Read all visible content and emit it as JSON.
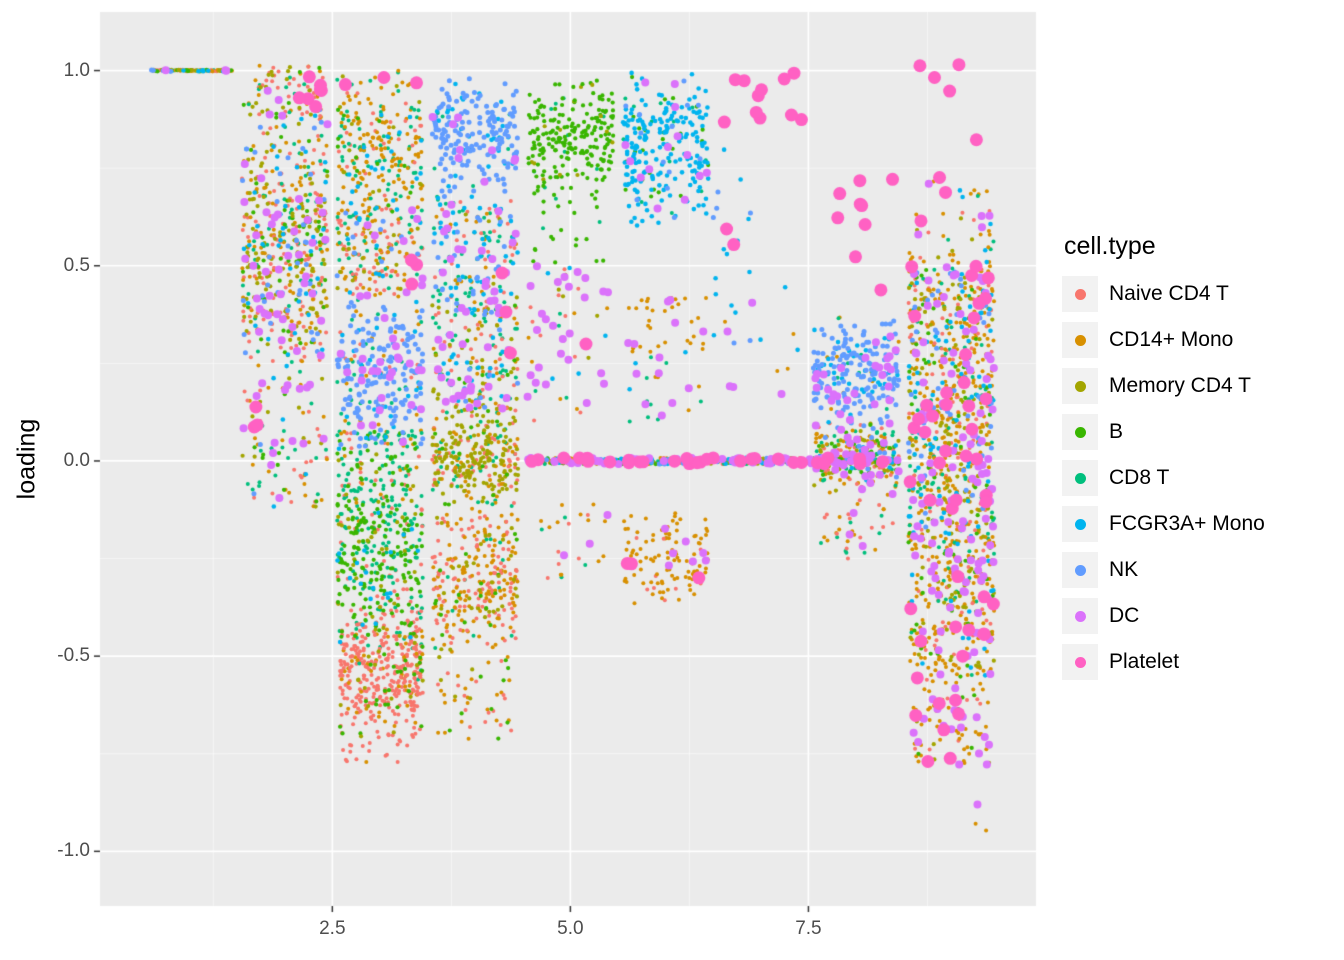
{
  "style": {
    "panel_background": "#EBEBEB",
    "grid_major_color": "#FFFFFF",
    "grid_minor_color": "rgba(255,255,255,0.55)",
    "tick_mark_color": "#333333",
    "tick_label_color": "#4D4D4D"
  },
  "chart_data": {
    "type": "scatter",
    "title": "",
    "xlabel": "",
    "ylabel": "loading",
    "legend_title": "cell.type",
    "legend_position": "right",
    "grid": true,
    "xlim": [
      0.06,
      9.89
    ],
    "ylim": [
      -1.14,
      1.15
    ],
    "x_ticks": [
      2.5,
      5.0,
      7.5
    ],
    "x_tick_labels": [
      "2.5",
      "5.0",
      "7.5"
    ],
    "x_minor": [
      1.25,
      3.75,
      6.25,
      8.75
    ],
    "y_ticks": [
      -1.0,
      -0.5,
      0.0,
      0.5,
      1.0
    ],
    "y_tick_labels": [
      "-1.0",
      "-0.5",
      "0.0",
      "0.5",
      "1.0"
    ],
    "y_minor": [
      -0.75,
      -0.25,
      0.25,
      0.75
    ],
    "cell_types": [
      {
        "id": "N",
        "name": "Naive CD4 T",
        "color": "#F8766D",
        "r": 2.0
      },
      {
        "id": "C14",
        "name": "CD14+ Mono",
        "color": "#D89000",
        "r": 2.0
      },
      {
        "id": "M",
        "name": "Memory CD4 T",
        "color": "#A3A500",
        "r": 2.1
      },
      {
        "id": "B",
        "name": "B",
        "color": "#39B600",
        "r": 2.1
      },
      {
        "id": "C8",
        "name": "CD8 T",
        "color": "#00BF7D",
        "r": 2.0
      },
      {
        "id": "F",
        "name": "FCGR3A+ Mono",
        "color": "#00B4EF",
        "r": 2.3
      },
      {
        "id": "NK",
        "name": "NK",
        "color": "#619CFF",
        "r": 2.5
      },
      {
        "id": "DC",
        "name": "DC",
        "color": "#DB72FB",
        "r": 4.0
      },
      {
        "id": "P",
        "name": "Platelet",
        "color": "#FF61C3",
        "r": 6.5
      }
    ],
    "clusters": [
      {
        "n": 110,
        "x": [
          0.6,
          1.45
        ],
        "y": [
          0.998,
          1.002
        ],
        "dist": "u",
        "mix": {
          "N": 20,
          "C14": 20,
          "M": 15,
          "B": 10,
          "C8": 15,
          "F": 10,
          "NK": 5,
          "DC": 5
        }
      },
      {
        "n": 550,
        "x": [
          1.55,
          2.45
        ],
        "y": [
          0.18,
          0.92
        ],
        "dist": "g",
        "mix": {
          "N": 22,
          "C14": 20,
          "M": 18,
          "B": 8,
          "C8": 12,
          "F": 8,
          "NK": 7,
          "DC": 5
        }
      },
      {
        "n": 70,
        "x": [
          1.6,
          2.45
        ],
        "y": [
          0.88,
          1.02
        ],
        "dist": "u",
        "mix": {
          "N": 30,
          "C14": 25,
          "M": 20,
          "C8": 10,
          "F": 5,
          "B": 5,
          "DC": 5
        }
      },
      {
        "n": 7,
        "x": [
          2.05,
          2.4
        ],
        "y": [
          0.9,
          1.0
        ],
        "dist": "u",
        "mix": {
          "P": 1
        }
      },
      {
        "n": 90,
        "x": [
          1.55,
          2.45
        ],
        "y": [
          -0.12,
          0.2
        ],
        "dist": "u",
        "mix": {
          "N": 20,
          "C14": 20,
          "M": 10,
          "C8": 15,
          "B": 10,
          "F": 5,
          "NK": 5,
          "DC": 15
        }
      },
      {
        "n": 3,
        "x": [
          1.58,
          1.78
        ],
        "y": [
          0.08,
          0.16
        ],
        "dist": "u",
        "mix": {
          "P": 1
        }
      },
      {
        "n": 20,
        "x": [
          1.6,
          2.4
        ],
        "y": [
          0.15,
          0.7
        ],
        "dist": "u",
        "mix": {
          "DC": 1
        }
      },
      {
        "n": 260,
        "x": [
          2.55,
          3.45
        ],
        "y": [
          0.6,
          1.0
        ],
        "dist": "g",
        "mix": {
          "C14": 55,
          "C8": 20,
          "N": 10,
          "F": 5,
          "M": 5,
          "B": 5
        }
      },
      {
        "n": 3,
        "x": [
          2.58,
          3.4
        ],
        "y": [
          0.93,
          1.01
        ],
        "dist": "u",
        "mix": {
          "P": 1
        }
      },
      {
        "n": 3,
        "x": [
          3.2,
          3.4
        ],
        "y": [
          0.42,
          0.52
        ],
        "dist": "u",
        "mix": {
          "P": 1
        }
      },
      {
        "n": 200,
        "x": [
          2.55,
          3.45
        ],
        "y": [
          0.42,
          0.65
        ],
        "dist": "u",
        "mix": {
          "N": 30,
          "C14": 30,
          "C8": 15,
          "M": 10,
          "F": 5,
          "NK": 5,
          "DC": 5
        }
      },
      {
        "n": 260,
        "x": [
          2.55,
          3.45
        ],
        "y": [
          0.02,
          0.42
        ],
        "dist": "g",
        "mix": {
          "NK": 60,
          "F": 10,
          "DC": 8,
          "C8": 10,
          "N": 6,
          "C14": 6
        }
      },
      {
        "n": 200,
        "x": [
          2.55,
          3.45
        ],
        "y": [
          -0.18,
          0.08
        ],
        "dist": "u",
        "mix": {
          "C8": 50,
          "B": 20,
          "M": 10,
          "N": 10,
          "C14": 10
        }
      },
      {
        "n": 280,
        "x": [
          2.55,
          3.45
        ],
        "y": [
          -0.48,
          -0.1
        ],
        "dist": "g",
        "mix": {
          "B": 45,
          "C8": 30,
          "M": 10,
          "N": 10,
          "F": 5
        }
      },
      {
        "n": 420,
        "x": [
          2.58,
          3.45
        ],
        "y": [
          -0.72,
          -0.35
        ],
        "dist": "g",
        "mix": {
          "N": 75,
          "C14": 10,
          "B": 8,
          "M": 5,
          "C8": 2
        }
      },
      {
        "n": 20,
        "x": [
          2.6,
          3.3
        ],
        "y": [
          -0.78,
          -0.7
        ],
        "dist": "u",
        "mix": {
          "N": 80,
          "C14": 20
        }
      },
      {
        "n": 200,
        "x": [
          3.55,
          4.45
        ],
        "y": [
          0.68,
          0.98
        ],
        "dist": "g",
        "mix": {
          "NK": 75,
          "F": 15,
          "C8": 5,
          "DC": 5
        }
      },
      {
        "n": 170,
        "x": [
          3.55,
          4.45
        ],
        "y": [
          0.42,
          0.68
        ],
        "dist": "u",
        "mix": {
          "C8": 30,
          "F": 20,
          "NK": 15,
          "N": 10,
          "C14": 10,
          "DC": 10,
          "M": 5
        }
      },
      {
        "n": 3,
        "x": [
          4.25,
          4.42
        ],
        "y": [
          0.26,
          0.56
        ],
        "dist": "u",
        "mix": {
          "P": 1
        }
      },
      {
        "n": 220,
        "x": [
          3.55,
          4.45
        ],
        "y": [
          0.12,
          0.42
        ],
        "dist": "u",
        "mix": {
          "C8": 20,
          "N": 15,
          "C14": 15,
          "M": 15,
          "F": 10,
          "DC": 15,
          "B": 5,
          "NK": 5
        }
      },
      {
        "n": 300,
        "x": [
          3.55,
          4.45
        ],
        "y": [
          -0.12,
          0.15
        ],
        "dist": "g",
        "mix": {
          "M": 50,
          "C14": 20,
          "N": 15,
          "C8": 10,
          "B": 5
        }
      },
      {
        "n": 300,
        "x": [
          3.55,
          4.45
        ],
        "y": [
          -0.5,
          -0.12
        ],
        "dist": "g",
        "mix": {
          "C14": 50,
          "N": 30,
          "M": 10,
          "B": 5,
          "C8": 5
        }
      },
      {
        "n": 50,
        "x": [
          3.6,
          4.4
        ],
        "y": [
          -0.72,
          -0.5
        ],
        "dist": "u",
        "mix": {
          "C14": 50,
          "N": 30,
          "B": 10,
          "M": 10
        }
      },
      {
        "n": 230,
        "x": [
          4.55,
          5.45
        ],
        "y": [
          0.68,
          0.98
        ],
        "dist": "g",
        "mix": {
          "B": 90,
          "M": 5,
          "C8": 5
        }
      },
      {
        "n": 25,
        "x": [
          4.6,
          5.4
        ],
        "y": [
          0.5,
          0.7
        ],
        "dist": "u",
        "mix": {
          "B": 80,
          "C8": 20
        }
      },
      {
        "n": 60,
        "x": [
          4.55,
          5.45
        ],
        "y": [
          0.1,
          0.5
        ],
        "dist": "u",
        "mix": {
          "DC": 35,
          "N": 15,
          "C8": 15,
          "F": 10,
          "M": 10,
          "C14": 10,
          "P": 5
        }
      },
      {
        "n": 25,
        "x": [
          4.6,
          5.4
        ],
        "y": [
          -0.3,
          -0.08
        ],
        "dist": "u",
        "mix": {
          "C14": 40,
          "N": 20,
          "DC": 20,
          "C8": 20
        }
      },
      {
        "n": 650,
        "x": [
          4.55,
          8.45
        ],
        "y": [
          -0.008,
          0.008
        ],
        "dist": "u",
        "mix": {
          "B": 15,
          "C8": 15,
          "N": 15,
          "C14": 15,
          "M": 10,
          "F": 10,
          "NK": 5,
          "DC": 10,
          "P": 5
        }
      },
      {
        "n": 260,
        "x": [
          5.55,
          6.45
        ],
        "y": [
          0.6,
          1.0
        ],
        "dist": "g",
        "mix": {
          "F": 75,
          "B": 8,
          "NK": 7,
          "C8": 5,
          "DC": 5
        }
      },
      {
        "n": 35,
        "x": [
          5.6,
          6.45
        ],
        "y": [
          0.28,
          0.42
        ],
        "dist": "u",
        "mix": {
          "C14": 85,
          "DC": 15
        }
      },
      {
        "n": 120,
        "x": [
          5.55,
          6.45
        ],
        "y": [
          -0.38,
          -0.13
        ],
        "dist": "g",
        "mix": {
          "C14": 80,
          "N": 5,
          "DC": 10,
          "P": 5
        }
      },
      {
        "n": 25,
        "x": [
          5.6,
          6.4
        ],
        "y": [
          0.1,
          0.28
        ],
        "dist": "u",
        "mix": {
          "C14": 40,
          "F": 20,
          "DC": 20,
          "C8": 20
        }
      },
      {
        "n": 11,
        "x": [
          6.6,
          7.45
        ],
        "y": [
          0.84,
          1.02
        ],
        "dist": "u",
        "mix": {
          "P": 1
        }
      },
      {
        "n": 2,
        "x": [
          6.62,
          6.75
        ],
        "y": [
          0.52,
          0.6
        ],
        "dist": "u",
        "mix": {
          "P": 1
        }
      },
      {
        "n": 18,
        "x": [
          6.5,
          6.9
        ],
        "y": [
          0.3,
          0.8
        ],
        "dist": "u",
        "mix": {
          "F": 80,
          "NK": 20
        }
      },
      {
        "n": 12,
        "x": [
          6.6,
          7.4
        ],
        "y": [
          0.1,
          0.45
        ],
        "dist": "u",
        "mix": {
          "F": 40,
          "C14": 30,
          "DC": 30
        }
      },
      {
        "n": 230,
        "x": [
          7.55,
          8.45
        ],
        "y": [
          0.08,
          0.38
        ],
        "dist": "g",
        "mix": {
          "NK": 70,
          "F": 10,
          "DC": 10,
          "C8": 5,
          "C14": 5
        }
      },
      {
        "n": 260,
        "x": [
          7.55,
          8.45
        ],
        "y": [
          -0.08,
          0.1
        ],
        "dist": "g",
        "mix": {
          "N": 20,
          "C14": 20,
          "M": 15,
          "C8": 15,
          "B": 10,
          "F": 5,
          "DC": 10,
          "NK": 5
        }
      },
      {
        "n": 6,
        "x": [
          7.7,
          8.2
        ],
        "y": [
          0.5,
          0.75
        ],
        "dist": "u",
        "mix": {
          "P": 1
        }
      },
      {
        "n": 3,
        "x": [
          7.7,
          8.4
        ],
        "y": [
          0.3,
          0.98
        ],
        "dist": "u",
        "mix": {
          "P": 1
        }
      },
      {
        "n": 40,
        "x": [
          7.6,
          8.4
        ],
        "y": [
          -0.25,
          -0.08
        ],
        "dist": "u",
        "mix": {
          "N": 30,
          "C14": 30,
          "DC": 20,
          "C8": 20
        }
      },
      {
        "n": 380,
        "x": [
          8.55,
          9.45
        ],
        "y": [
          0.15,
          0.5
        ],
        "dist": "u",
        "mix": {
          "C14": 35,
          "N": 12,
          "M": 12,
          "C8": 10,
          "F": 10,
          "B": 6,
          "NK": 5,
          "DC": 7,
          "P": 3
        }
      },
      {
        "n": 420,
        "x": [
          8.55,
          9.45
        ],
        "y": [
          -0.2,
          0.15
        ],
        "dist": "u",
        "mix": {
          "C14": 35,
          "N": 10,
          "M": 12,
          "C8": 10,
          "F": 8,
          "B": 7,
          "NK": 5,
          "DC": 10,
          "P": 3
        }
      },
      {
        "n": 320,
        "x": [
          8.55,
          9.45
        ],
        "y": [
          -0.55,
          -0.2
        ],
        "dist": "u",
        "mix": {
          "C14": 45,
          "N": 10,
          "M": 10,
          "B": 8,
          "C8": 7,
          "DC": 12,
          "P": 4,
          "F": 4
        }
      },
      {
        "n": 90,
        "x": [
          8.6,
          9.4
        ],
        "y": [
          -0.78,
          -0.55
        ],
        "dist": "u",
        "mix": {
          "C14": 50,
          "DC": 20,
          "P": 8,
          "N": 10,
          "M": 7,
          "B": 5
        }
      },
      {
        "n": 3,
        "x": [
          9.15,
          9.4
        ],
        "y": [
          -1.0,
          -0.86
        ],
        "dist": "u",
        "mix": {
          "C14": 34,
          "DC": 33,
          "B": 33
        }
      },
      {
        "n": 8,
        "x": [
          8.55,
          9.45
        ],
        "y": [
          0.55,
          1.02
        ],
        "dist": "u",
        "mix": {
          "P": 1
        }
      },
      {
        "n": 45,
        "x": [
          8.55,
          9.45
        ],
        "y": [
          0.5,
          0.72
        ],
        "dist": "u",
        "mix": {
          "C14": 40,
          "N": 15,
          "F": 10,
          "C8": 10,
          "DC": 15,
          "M": 10
        }
      }
    ]
  }
}
